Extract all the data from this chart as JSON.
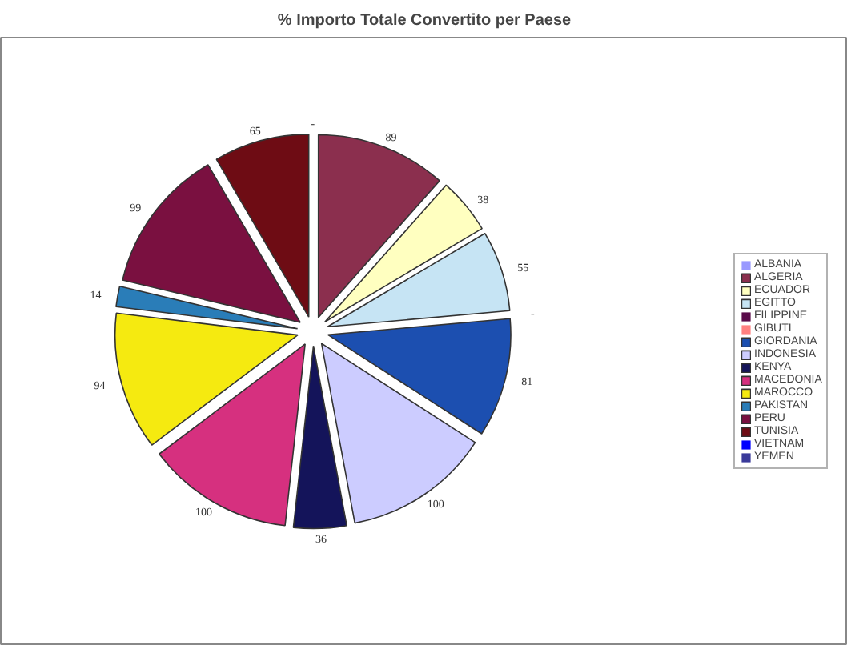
{
  "chart_data": {
    "type": "pie",
    "title": "% Importo Totale Convertito per Paese",
    "categories": [
      "ALBANIA",
      "ALGERIA",
      "ECUADOR",
      "EGITTO",
      "FILIPPINE",
      "GIBUTI",
      "GIORDANIA",
      "INDONESIA",
      "KENYA",
      "MACEDONIA",
      "MAROCCO",
      "PAKISTAN",
      "PERU",
      "TUNISIA",
      "VIETNAM",
      "YEMEN"
    ],
    "values": [
      0,
      89,
      38,
      55,
      0,
      0,
      81,
      100,
      36,
      100,
      94,
      14,
      99,
      65,
      0,
      0
    ],
    "value_labels": [
      "-",
      "89",
      "38",
      "55",
      "-",
      null,
      "81",
      "100",
      "36",
      "100",
      "94",
      "14",
      "99",
      "65",
      null,
      null
    ],
    "colors": [
      "#9999ff",
      "#8b2f4e",
      "#ffffc0",
      "#c6e4f4",
      "#5a0a4a",
      "#ff8080",
      "#1c4fb0",
      "#ccccff",
      "#14145a",
      "#d6307f",
      "#f5ea10",
      "#2a7db8",
      "#7a1040",
      "#6e0c14",
      "#0000ff",
      "#3a3a9a"
    ],
    "legend": "right"
  }
}
